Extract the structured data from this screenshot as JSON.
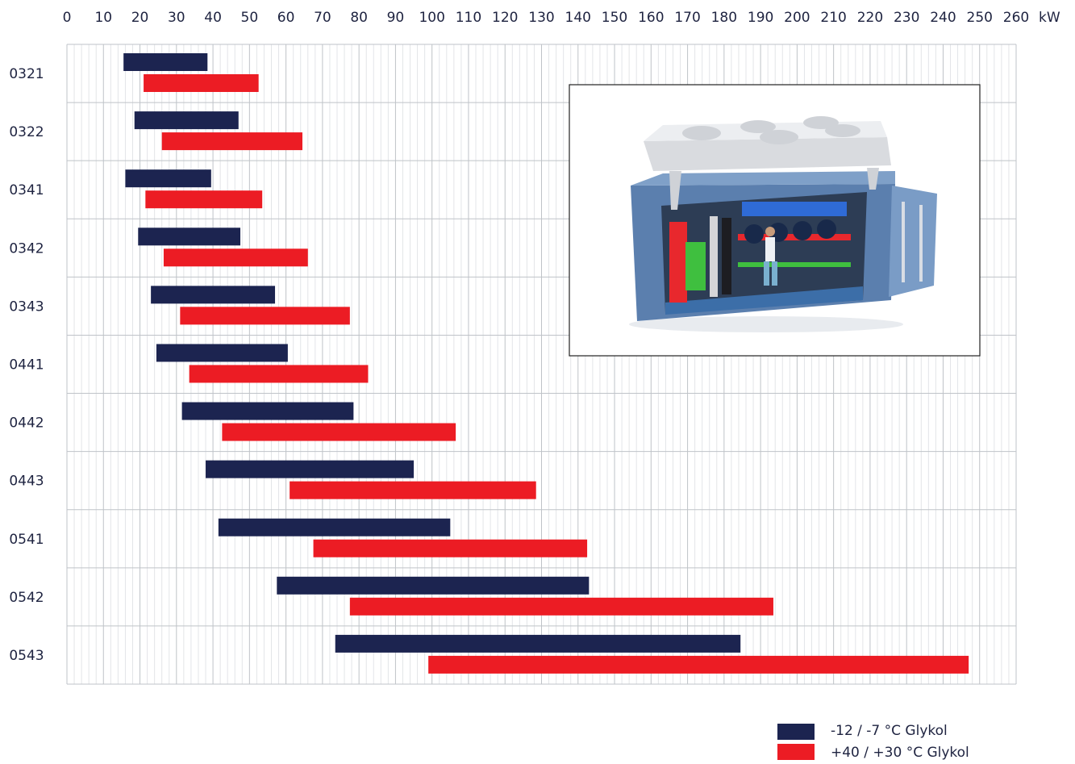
{
  "chart_data": {
    "type": "bar",
    "orientation": "horizontal-range",
    "x_unit": "kW",
    "xlim": [
      0,
      260
    ],
    "x_ticks": [
      0,
      10,
      20,
      30,
      40,
      50,
      60,
      70,
      80,
      90,
      100,
      110,
      120,
      130,
      140,
      150,
      160,
      170,
      180,
      190,
      200,
      210,
      220,
      230,
      240,
      250,
      260
    ],
    "categories": [
      "0321",
      "0322",
      "0341",
      "0342",
      "0343",
      "0441",
      "0442",
      "0443",
      "0541",
      "0542",
      "0543"
    ],
    "series": [
      {
        "name": "-12 / -7 °C Glykol",
        "color": "#1c2450",
        "ranges": [
          [
            15.5,
            38.5
          ],
          [
            18.5,
            47
          ],
          [
            16,
            39.5
          ],
          [
            19.5,
            47.5
          ],
          [
            23,
            57
          ],
          [
            24.5,
            60.5
          ],
          [
            31.5,
            78.5
          ],
          [
            38,
            95
          ],
          [
            41.5,
            105
          ],
          [
            57.5,
            143
          ],
          [
            73.5,
            184.5
          ]
        ]
      },
      {
        "name": "+40 / +30 °C Glykol",
        "color": "#ec1c24",
        "ranges": [
          [
            21,
            52.5
          ],
          [
            26,
            64.5
          ],
          [
            21.5,
            53.5
          ],
          [
            26.5,
            66
          ],
          [
            31,
            77.5
          ],
          [
            33.5,
            82.5
          ],
          [
            42.5,
            106.5
          ],
          [
            61,
            128.5
          ],
          [
            67.5,
            142.5
          ],
          [
            77.5,
            193.5
          ],
          [
            99,
            247
          ]
        ]
      }
    ],
    "grid": true,
    "legend_position": "bottom-right"
  },
  "inset_image": {
    "icon": "container-refrigeration-unit-illustration"
  }
}
